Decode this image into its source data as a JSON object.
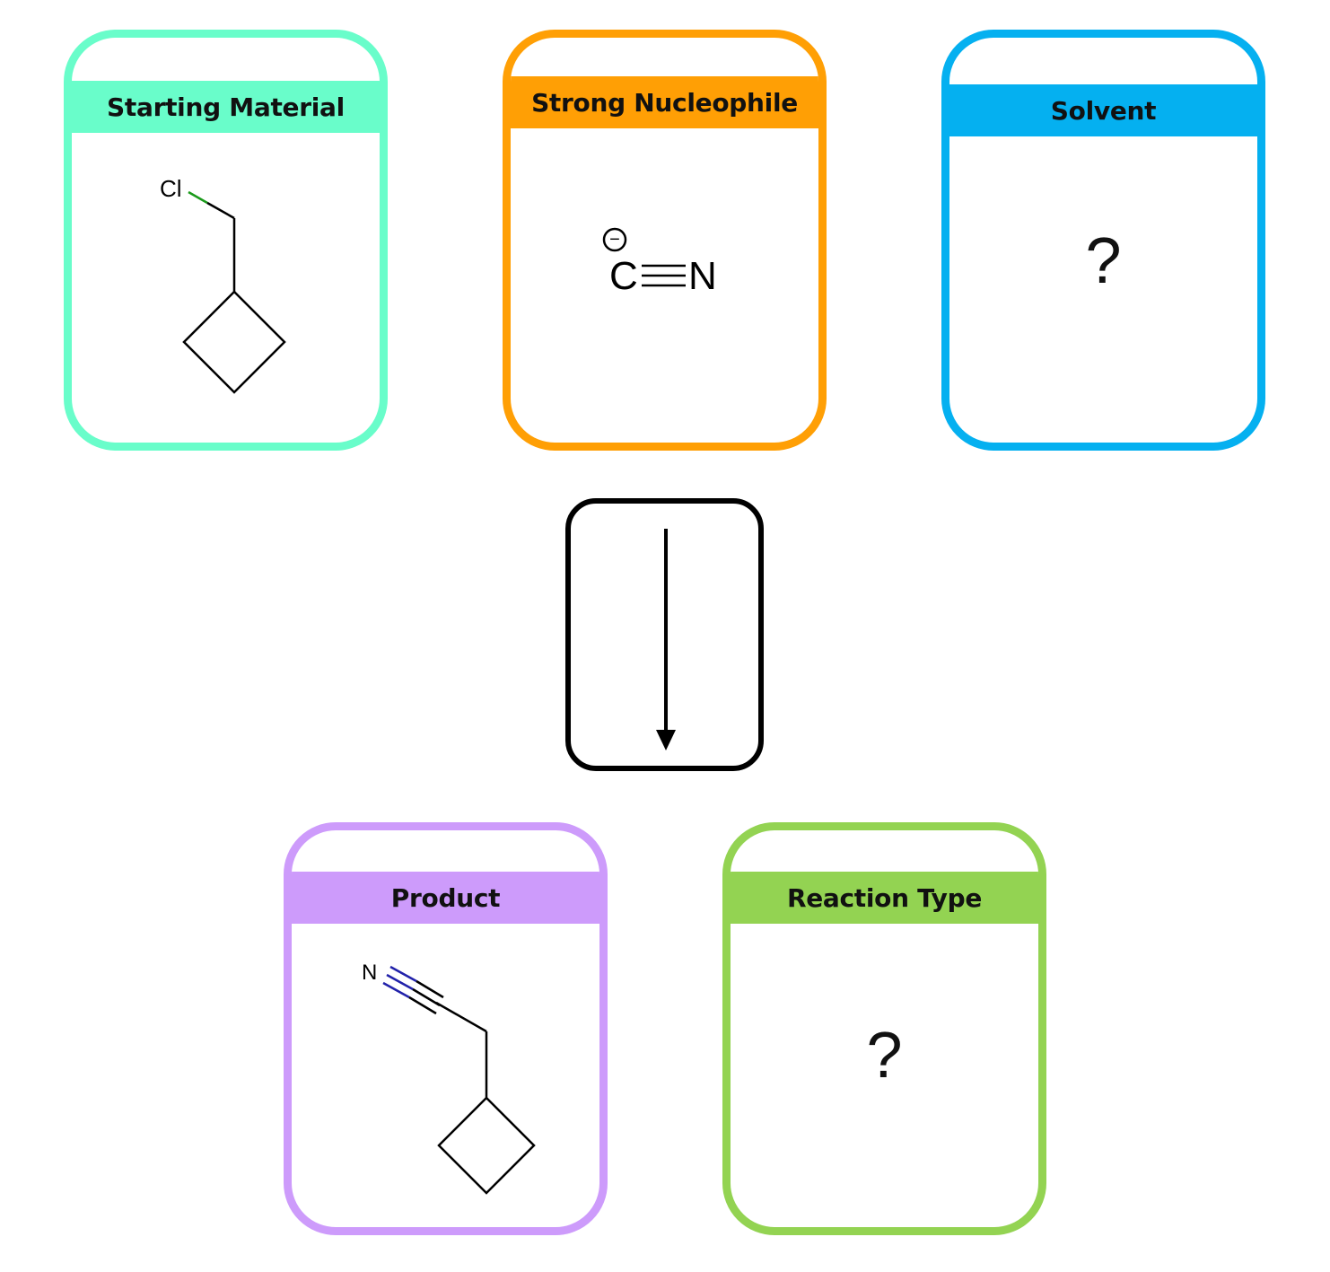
{
  "cards": {
    "starting_material": {
      "title": "Starting Material",
      "color": "#69fdca",
      "atoms": {
        "cl": "Cl"
      }
    },
    "nucleophile": {
      "title": "Strong Nucleophile",
      "color": "#ff9f05",
      "atoms": {
        "c": "C",
        "n": "N",
        "charge": "−"
      }
    },
    "solvent": {
      "title": "Solvent",
      "color": "#05b0f0",
      "value": "?"
    },
    "product": {
      "title": "Product",
      "color": "#cd9bfb",
      "atoms": {
        "n": "N"
      }
    },
    "reaction_type": {
      "title": "Reaction Type",
      "color": "#93d352",
      "value": "?"
    }
  },
  "colors": {
    "bond": "#000000",
    "chlorine_bond": "#1a9a1a",
    "nitrogen_bond": "#2222aa"
  }
}
